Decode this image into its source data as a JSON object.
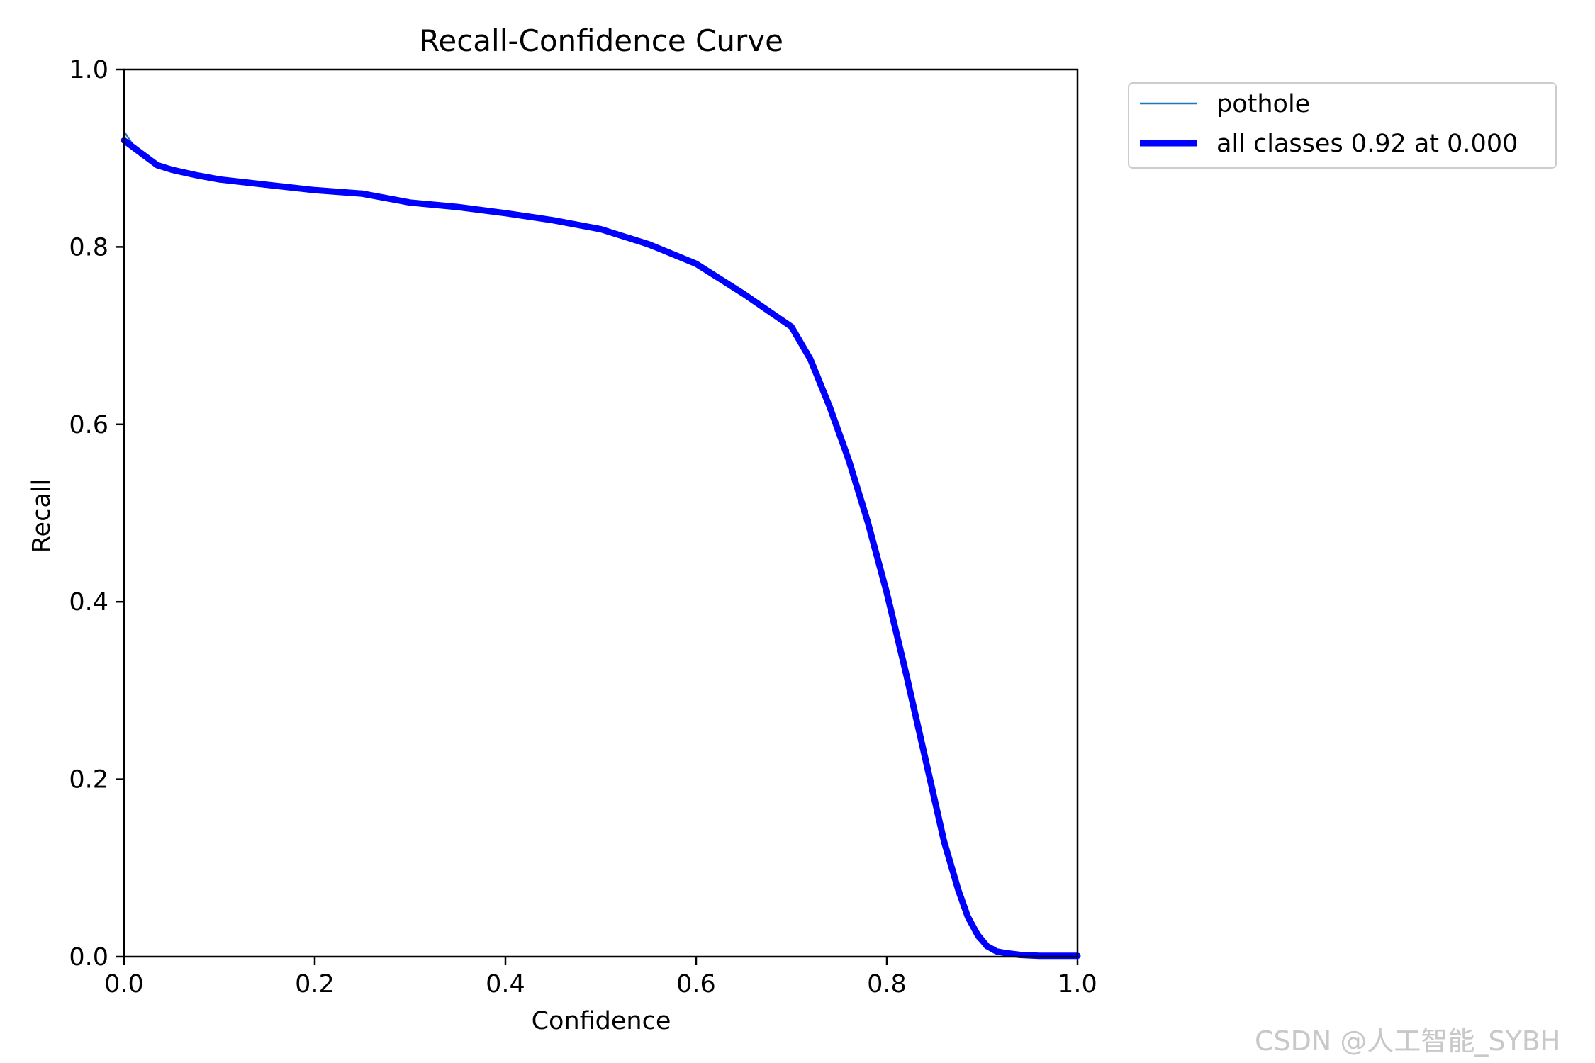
{
  "watermark": "CSDN @人工智能_SYBH",
  "chart_data": {
    "type": "line",
    "title": "Recall-Confidence Curve",
    "xlabel": "Confidence",
    "ylabel": "Recall",
    "xlim": [
      0.0,
      1.0
    ],
    "ylim": [
      0.0,
      1.0
    ],
    "xticks": [
      "0.0",
      "0.2",
      "0.4",
      "0.6",
      "0.8",
      "1.0"
    ],
    "yticks": [
      "0.0",
      "0.2",
      "0.4",
      "0.6",
      "0.8",
      "1.0"
    ],
    "grid": false,
    "legend_position": "outside-top-right",
    "series": [
      {
        "name": "pothole",
        "color": "#1f77b4",
        "style": "thin",
        "x": [
          0.0,
          0.01,
          0.02,
          0.035,
          0.05,
          0.075,
          0.1,
          0.15,
          0.2,
          0.25,
          0.3,
          0.35,
          0.4,
          0.45,
          0.5,
          0.55,
          0.6,
          0.65,
          0.7,
          0.72,
          0.74,
          0.76,
          0.78,
          0.8,
          0.82,
          0.84,
          0.86,
          0.875,
          0.885,
          0.895,
          0.905,
          0.915,
          0.925,
          0.94,
          0.96,
          0.98,
          1.0
        ],
        "y": [
          0.93,
          0.914,
          0.904,
          0.89,
          0.885,
          0.88,
          0.875,
          0.87,
          0.863,
          0.86,
          0.85,
          0.845,
          0.838,
          0.83,
          0.82,
          0.8,
          0.78,
          0.745,
          0.71,
          0.67,
          0.62,
          0.56,
          0.49,
          0.41,
          0.33,
          0.23,
          0.13,
          0.07,
          0.04,
          0.02,
          0.01,
          0.005,
          0.003,
          0.002,
          0.001,
          0.001,
          0.001
        ]
      },
      {
        "name": "all classes 0.92 at 0.000",
        "color": "#0000ff",
        "style": "thick",
        "x": [
          0.0,
          0.01,
          0.02,
          0.035,
          0.05,
          0.075,
          0.1,
          0.15,
          0.2,
          0.25,
          0.3,
          0.35,
          0.4,
          0.45,
          0.5,
          0.55,
          0.6,
          0.65,
          0.7,
          0.72,
          0.74,
          0.76,
          0.78,
          0.8,
          0.82,
          0.84,
          0.86,
          0.875,
          0.885,
          0.895,
          0.905,
          0.915,
          0.925,
          0.94,
          0.96,
          0.98,
          1.0
        ],
        "y": [
          0.92,
          0.912,
          0.904,
          0.892,
          0.887,
          0.881,
          0.876,
          0.87,
          0.864,
          0.86,
          0.85,
          0.845,
          0.838,
          0.83,
          0.82,
          0.803,
          0.781,
          0.747,
          0.71,
          0.673,
          0.62,
          0.56,
          0.49,
          0.41,
          0.32,
          0.225,
          0.13,
          0.075,
          0.045,
          0.025,
          0.012,
          0.006,
          0.004,
          0.002,
          0.001,
          0.001,
          0.001
        ]
      }
    ]
  }
}
